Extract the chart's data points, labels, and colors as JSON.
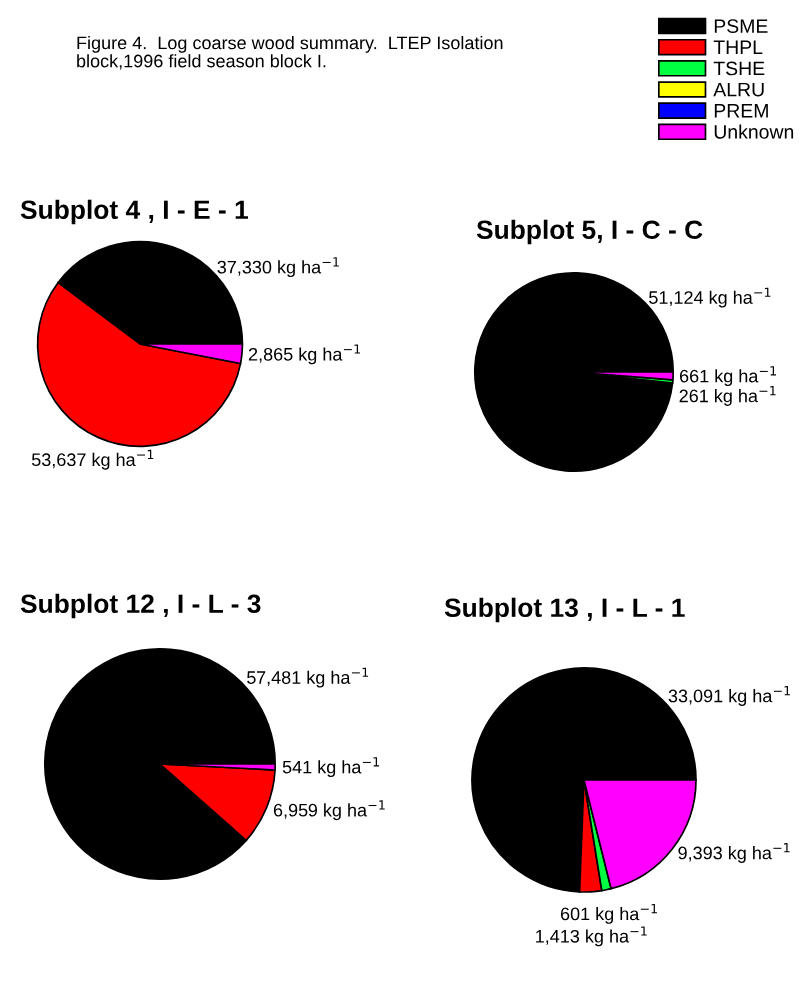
{
  "chart_data": [
    {
      "type": "pie",
      "title": "Subplot 4 , I - E - 1",
      "legend": "top right",
      "annotations": [
        "Figure 4.  Log coarse wood summary.  LTEP Isolation block,1996 field season block I."
      ],
      "categories": [
        "PSME",
        "THPL",
        "TSHE",
        "ALRU",
        "PREM",
        "Unknown"
      ],
      "values": [
        37330,
        53637,
        null,
        null,
        null,
        2865
      ],
      "colors": [
        "#000000",
        "#ff0000",
        "#00ff40",
        "#ffff00",
        "#0000ff",
        "#ff00ff"
      ],
      "value_labels": [
        "37,330 kg ha$^{−1}$",
        "53,637 kg ha$^{−1}$",
        null,
        null,
        null,
        "2,865 kg ha$^{−1}$"
      ]
    },
    {
      "type": "pie",
      "title": "Subplot 5, I - C - C",
      "categories": [
        null,
        null,
        null,
        null,
        null,
        null
      ],
      "values": [
        51124,
        null,
        261,
        null,
        null,
        661
      ],
      "colors": [
        "#000000",
        "#ff0000",
        "#00ff40",
        "#ffff00",
        "#0000ff",
        "#ff00ff"
      ],
      "value_labels": [
        "51,124 kg ha$^{−1}$",
        null,
        "261 kg ha$^{−1}$",
        null,
        null,
        "661 kg ha$^{−1}$"
      ]
    },
    {
      "type": "pie",
      "title": "Subplot 12 , I - L - 3",
      "categories": [
        null,
        null,
        null,
        null,
        null,
        null
      ],
      "values": [
        57481,
        6959,
        null,
        null,
        null,
        541
      ],
      "colors": [
        "#000000",
        "#ff0000",
        "#00ff40",
        "#ffff00",
        "#0000ff",
        "#ff00ff"
      ],
      "value_labels": [
        "57,481 kg ha$^{−1}$",
        "6,959 kg ha$^{−1}$",
        null,
        null,
        null,
        "541 kg ha$^{−1}$"
      ]
    },
    {
      "type": "pie",
      "title": "Subplot 13 , I - L - 1",
      "categories": [
        null,
        null,
        null,
        null,
        null,
        null
      ],
      "values": [
        33091,
        1413,
        601,
        null,
        null,
        9393
      ],
      "colors": [
        "#000000",
        "#ff0000",
        "#00ff40",
        "#ffff00",
        "#0000ff",
        "#ff00ff"
      ],
      "value_labels": [
        "33,091 kg ha$^{−1}$",
        "1,413 kg ha$^{−1}$",
        "601 kg ha$^{−1}$",
        null,
        null,
        "9,393 kg ha$^{−1}$"
      ]
    }
  ]
}
